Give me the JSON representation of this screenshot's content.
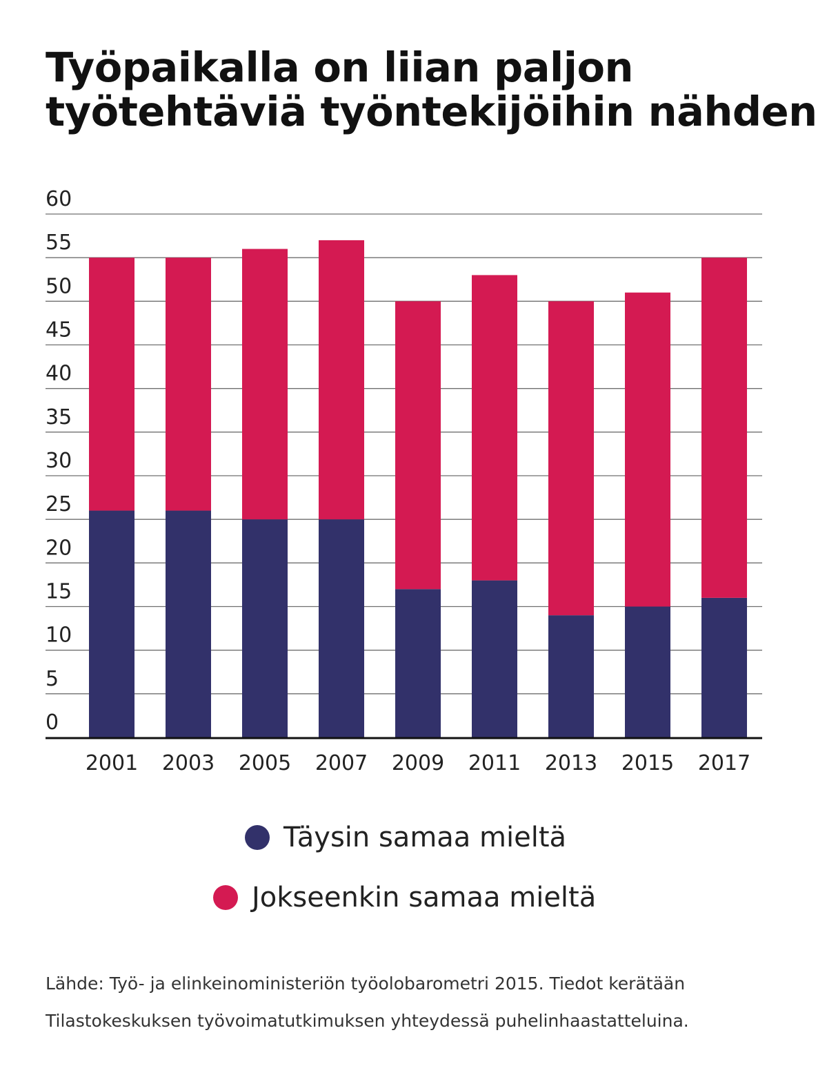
{
  "title_lines": [
    "Työpaikalla on liian paljon",
    "työtehtäviä työntekijöihin nähden"
  ],
  "source_lines": [
    "Lähde: Työ- ja elinkeinoministeriön työolobarometri 2015. Tiedot kerätään",
    "Tilastokeskuksen työvoimatutkimuksen yhteydessä puhelinhaastatteluina."
  ],
  "chart_data": {
    "type": "bar",
    "stacked": true,
    "categories": [
      "2001",
      "2003",
      "2005",
      "2007",
      "2009",
      "2011",
      "2013",
      "2015",
      "2017"
    ],
    "series": [
      {
        "name": "Täysin samaa mieltä",
        "color": "#32316a",
        "values": [
          26,
          26,
          25,
          25,
          17,
          18,
          14,
          15,
          16
        ]
      },
      {
        "name": "Jokseenkin samaa mieltä",
        "color": "#d41a52",
        "values": [
          29,
          29,
          31,
          32,
          33,
          35,
          36,
          36,
          39
        ]
      }
    ],
    "ylim": [
      0,
      60
    ],
    "yticks": [
      "0",
      "5",
      "10",
      "15",
      "20",
      "25",
      "30",
      "35",
      "40",
      "45",
      "50",
      "55",
      "60"
    ],
    "grid": true,
    "legend_position": "bottom"
  }
}
